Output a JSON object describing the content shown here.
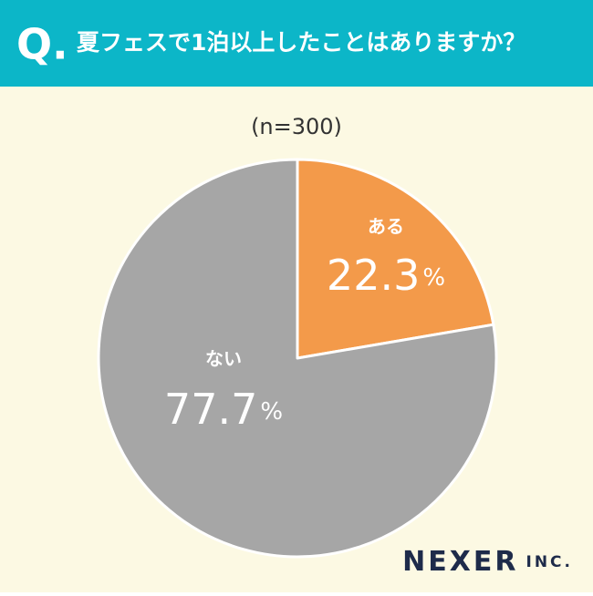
{
  "header_badge": "Q.",
  "logo": "NEXER",
  "logo_suffix": "INC.",
  "chart_data": {
    "type": "pie",
    "title": "夏フェスで1泊以上したことはありますか？",
    "subtitle": "(n=300)",
    "categories": [
      "ある",
      "ない"
    ],
    "values": [
      22.3,
      77.7
    ],
    "unit": "%",
    "colors": [
      "#f39a4a",
      "#a6a6a6"
    ]
  }
}
